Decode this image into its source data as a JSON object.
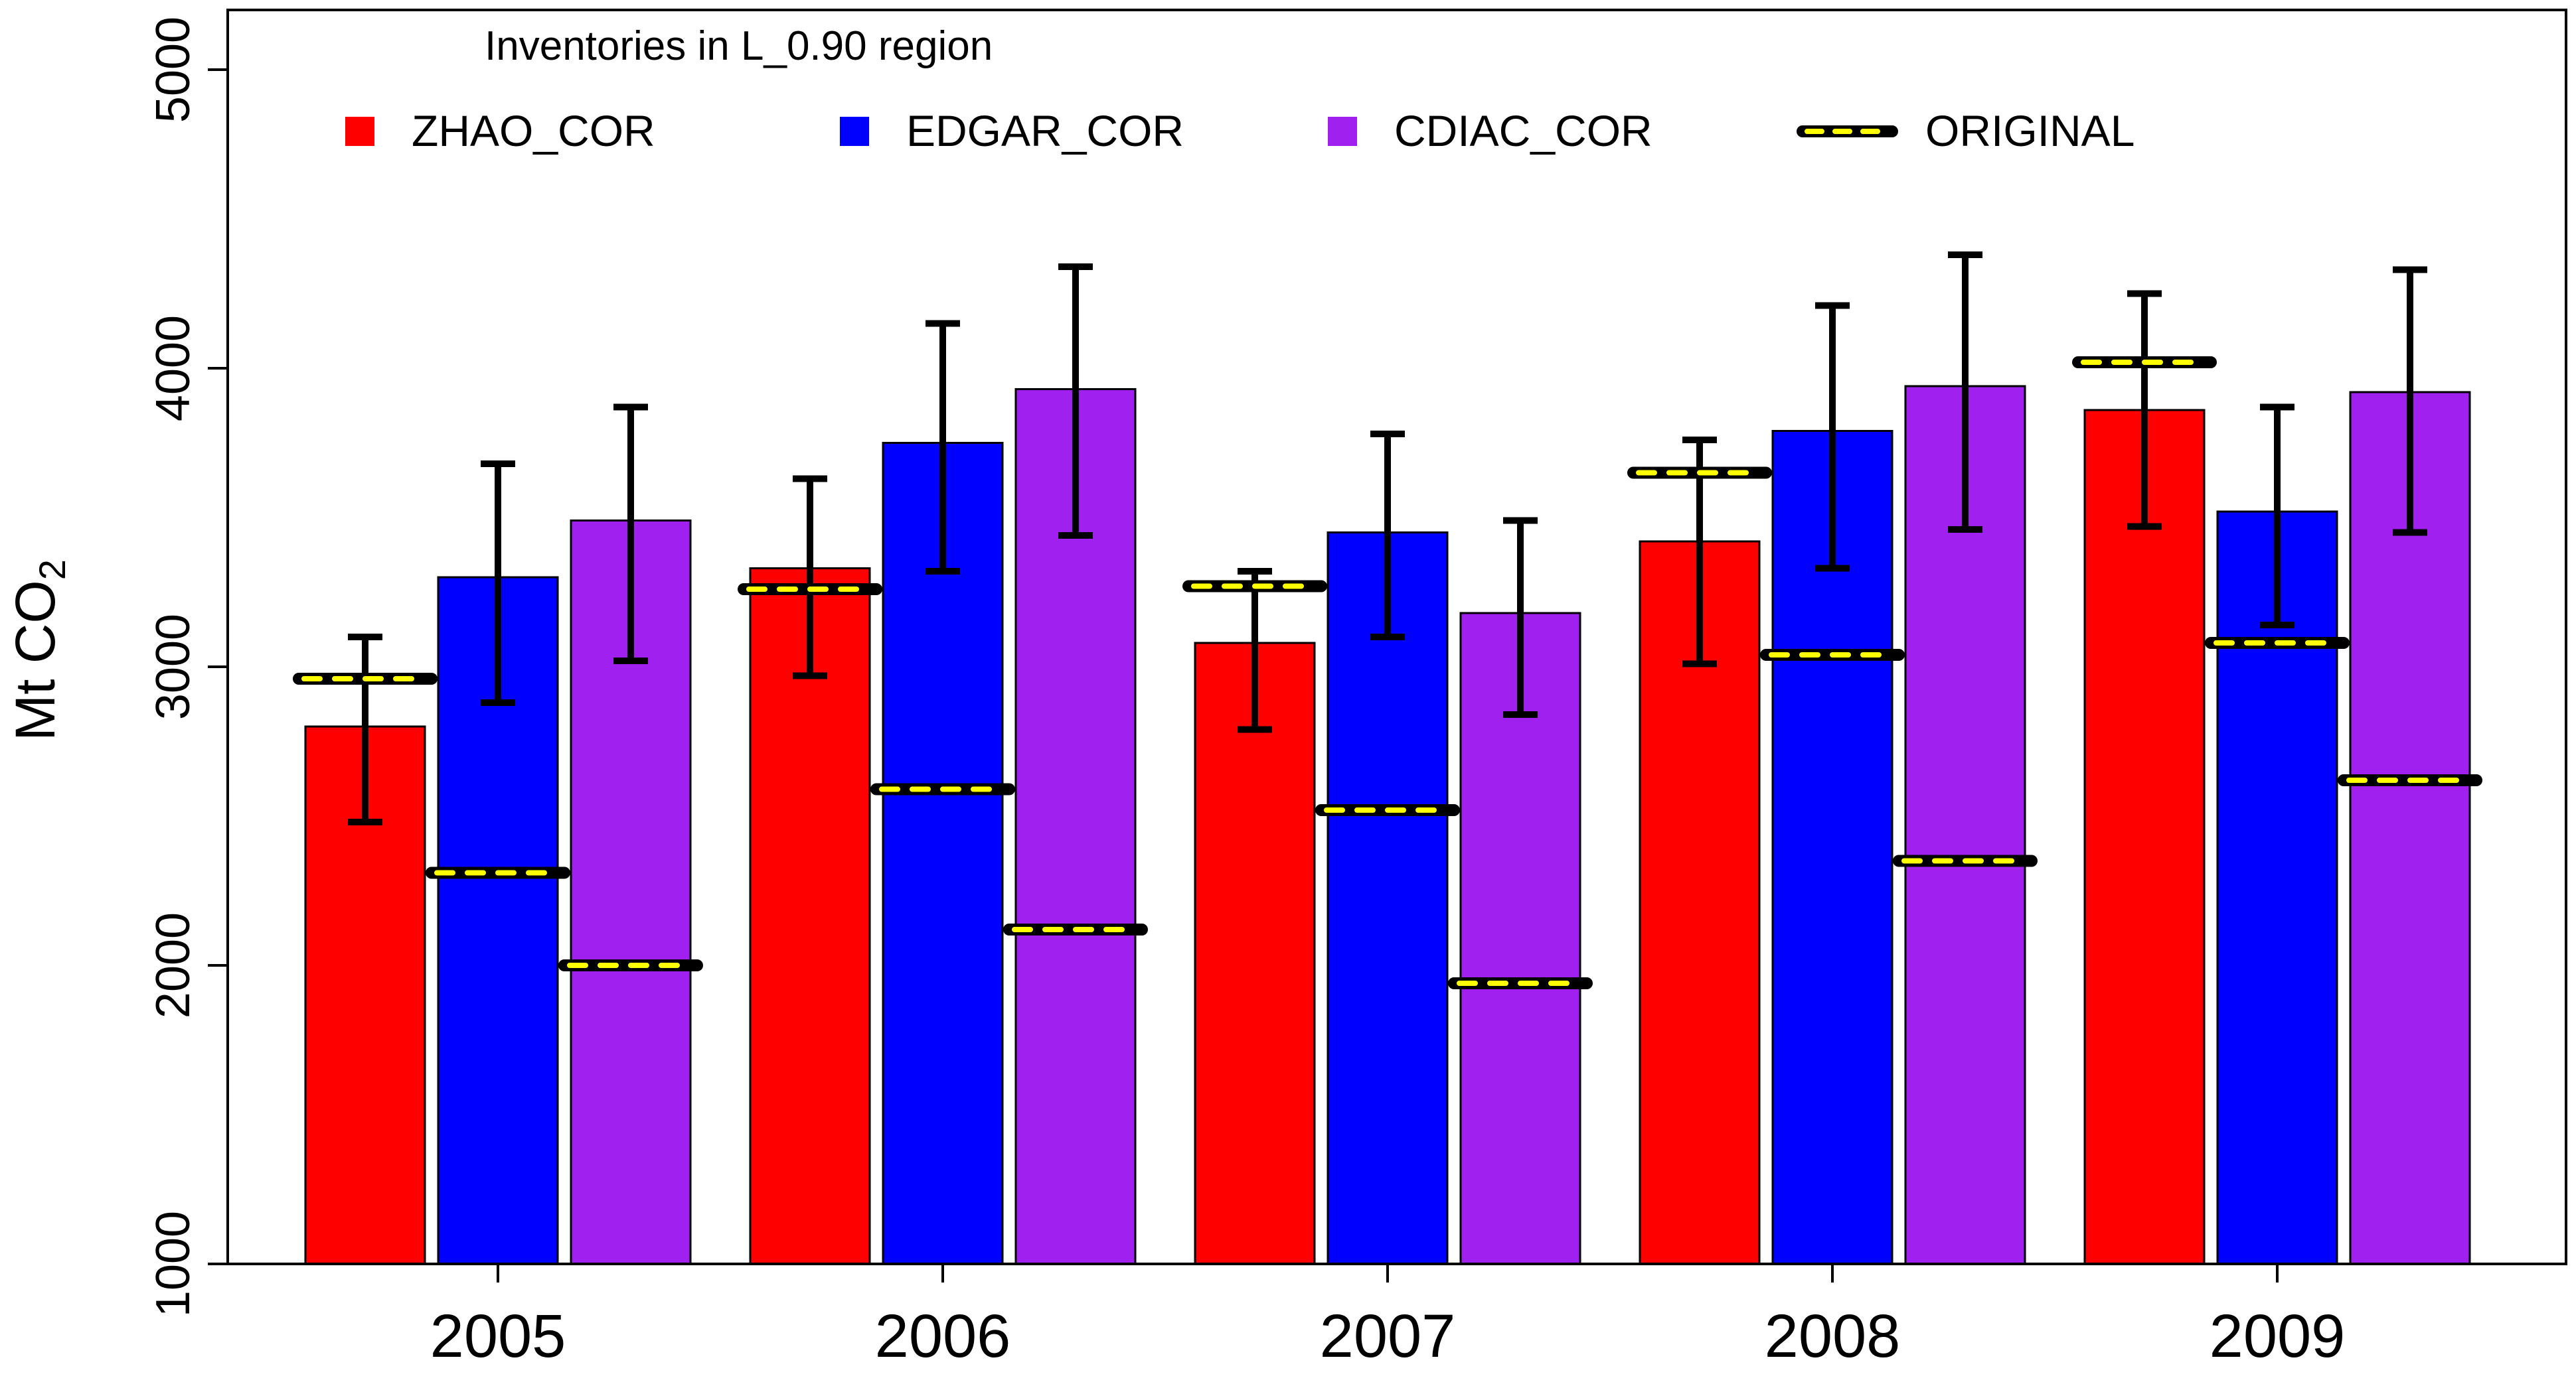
{
  "chart_data": {
    "type": "bar",
    "title": "Inventories in L_0.90 region",
    "ylabel": "Mt CO",
    "ylabel_sub": "2",
    "xlabel": "",
    "ylim": [
      1000,
      5200
    ],
    "yticks": [
      1000,
      2000,
      3000,
      4000,
      5000
    ],
    "categories": [
      "2005",
      "2006",
      "2007",
      "2008",
      "2009"
    ],
    "legend_position": "top",
    "grid": false,
    "series": [
      {
        "name": "ZHAO_COR",
        "color": "#ff0000",
        "values": [
          2800,
          3330,
          3080,
          3420,
          3860
        ],
        "err_low": [
          2480,
          2970,
          2790,
          3010,
          3470
        ],
        "err_high": [
          3100,
          3630,
          3320,
          3760,
          4250
        ],
        "original": [
          2960,
          3260,
          3270,
          3650,
          4020
        ]
      },
      {
        "name": "EDGAR_COR",
        "color": "#0000ff",
        "values": [
          3300,
          3750,
          3450,
          3790,
          3520
        ],
        "err_low": [
          2880,
          3320,
          3100,
          3330,
          3140
        ],
        "err_high": [
          3680,
          4150,
          3780,
          4210,
          3870
        ],
        "original": [
          2310,
          2590,
          2520,
          3040,
          3080
        ]
      },
      {
        "name": "CDIAC_COR",
        "color": "#a020f0",
        "values": [
          3490,
          3930,
          3180,
          3940,
          3920
        ],
        "err_low": [
          3020,
          3440,
          2840,
          3460,
          3450
        ],
        "err_high": [
          3870,
          4340,
          3490,
          4380,
          4330
        ],
        "original": [
          2000,
          2120,
          1940,
          2350,
          2620
        ]
      }
    ],
    "original_legend": "ORIGINAL",
    "original_color": "#ffff00"
  }
}
